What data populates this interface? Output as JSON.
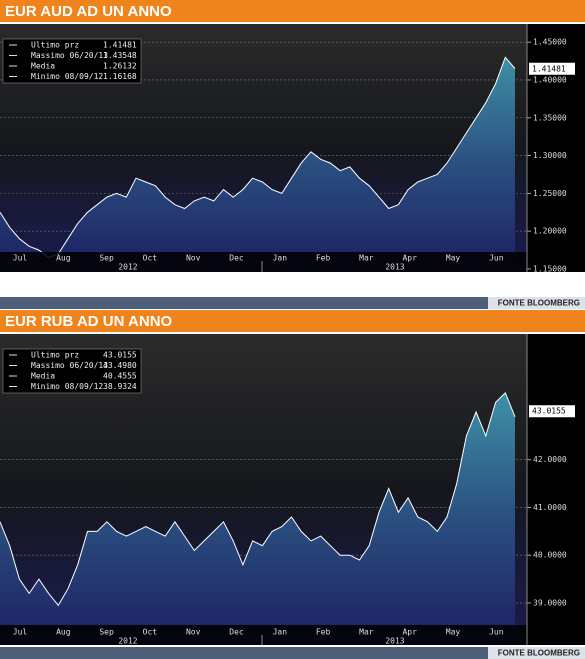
{
  "chart_data": [
    {
      "type": "area",
      "title": "EUR AUD AD UN ANNO",
      "source": "FONTE BLOOMBERG",
      "x_labels": [
        "Jul",
        "Aug",
        "Sep",
        "Oct",
        "Nov",
        "Dec",
        "Jan",
        "Feb",
        "Mar",
        "Apr",
        "May",
        "Jun"
      ],
      "year_labels": [
        "2012",
        "2013"
      ],
      "values": [
        1.225,
        1.205,
        1.19,
        1.18,
        1.175,
        1.165,
        1.17,
        1.19,
        1.21,
        1.225,
        1.235,
        1.245,
        1.25,
        1.245,
        1.27,
        1.265,
        1.26,
        1.245,
        1.235,
        1.23,
        1.24,
        1.245,
        1.24,
        1.255,
        1.245,
        1.255,
        1.27,
        1.265,
        1.255,
        1.25,
        1.27,
        1.29,
        1.305,
        1.295,
        1.29,
        1.28,
        1.285,
        1.27,
        1.26,
        1.245,
        1.23,
        1.235,
        1.255,
        1.265,
        1.27,
        1.275,
        1.29,
        1.31,
        1.33,
        1.35,
        1.37,
        1.395,
        1.43,
        1.415
      ],
      "color": "#ffffff",
      "ylim": [
        1.146,
        1.474
      ],
      "yticks": [
        {
          "value": 1.15,
          "label": "1.15000"
        },
        {
          "value": 1.2,
          "label": "1.20000"
        },
        {
          "value": 1.25,
          "label": "1.25000"
        },
        {
          "value": 1.3,
          "label": "1.30000"
        },
        {
          "value": 1.35,
          "label": "1.35000"
        },
        {
          "value": 1.4,
          "label": "1.40000"
        },
        {
          "value": 1.45,
          "label": "1.45000"
        }
      ],
      "grid": true,
      "legend": [
        {
          "label": "Ultimo prz",
          "value": 1.41481
        },
        {
          "label": "Massimo 06/20/13",
          "value": 1.43548
        },
        {
          "label": "Media",
          "value": 1.26132
        },
        {
          "label": "Minimo 08/09/12",
          "value": 1.16168
        }
      ]
    },
    {
      "type": "area",
      "title": "EUR RUB AD UN ANNO",
      "source": "FONTE BLOOMBERG",
      "x_labels": [
        "Jul",
        "Aug",
        "Sep",
        "Oct",
        "Nov",
        "Dec",
        "Jan",
        "Feb",
        "Mar",
        "Apr",
        "May",
        "Jun"
      ],
      "year_labels": [
        "2012",
        "2013"
      ],
      "values": [
        40.7,
        40.2,
        39.5,
        39.2,
        39.5,
        39.2,
        38.95,
        39.3,
        39.8,
        40.5,
        40.5,
        40.7,
        40.5,
        40.4,
        40.5,
        40.6,
        40.5,
        40.4,
        40.7,
        40.4,
        40.1,
        40.3,
        40.5,
        40.7,
        40.3,
        39.8,
        40.3,
        40.2,
        40.5,
        40.6,
        40.8,
        40.5,
        40.3,
        40.4,
        40.2,
        40.0,
        40.0,
        39.9,
        40.2,
        40.9,
        41.4,
        40.9,
        41.2,
        40.8,
        40.7,
        40.5,
        40.8,
        41.5,
        42.5,
        43.0,
        42.5,
        43.2,
        43.4,
        42.9
      ],
      "color": "#ffffff",
      "ylim": [
        38.12,
        44.633
      ],
      "yticks": [
        {
          "value": 39,
          "label": "39.0000"
        },
        {
          "value": 40,
          "label": "40.0000"
        },
        {
          "value": 41,
          "label": "41.0000"
        },
        {
          "value": 42,
          "label": "42.0000"
        }
      ],
      "grid": true,
      "legend": [
        {
          "label": "Ultimo prz",
          "value": 43.0155
        },
        {
          "label": "Massimo 06/20/13",
          "value": {
            "value": 43.498,
            "label": "43.4980"
          }
        },
        {
          "label": "Media",
          "value": 40.4555
        },
        {
          "label": "Minimo 08/09/12",
          "value": 38.9324
        }
      ]
    }
  ]
}
